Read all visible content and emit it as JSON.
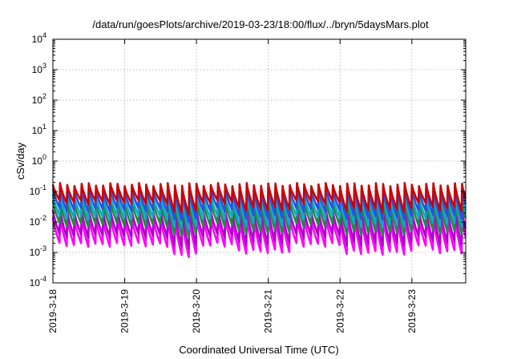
{
  "chart_data": {
    "type": "line",
    "title": "/data/run/goesPlots/archive/2019-03-23/18:00/flux/../bryn/5daysMars.plot",
    "xlabel": "Coordinated Universal Time (UTC)",
    "ylabel": "cSv/day",
    "yscale": "log",
    "ylim": [
      0.0001,
      10000
    ],
    "xlim": [
      "2019-03-18 00:00",
      "2019-03-23 18:00"
    ],
    "grid": true,
    "legend": "none",
    "y_ticks": [
      {
        "base": "10",
        "exp": "-4"
      },
      {
        "base": "10",
        "exp": "-3"
      },
      {
        "base": "10",
        "exp": "-2"
      },
      {
        "base": "10",
        "exp": "-1"
      },
      {
        "base": "10",
        "exp": "0"
      },
      {
        "base": "10",
        "exp": "1"
      },
      {
        "base": "10",
        "exp": "2"
      },
      {
        "base": "10",
        "exp": "3"
      },
      {
        "base": "10",
        "exp": "4"
      }
    ],
    "x_ticks": [
      "2019-3-18",
      "2019-3-19",
      "2019-3-20",
      "2019-3-21",
      "2019-3-22",
      "2019-3-23"
    ],
    "sawtooth": {
      "period_hours": 2.4,
      "note_free": true
    },
    "series": [
      {
        "color": "#cc0000",
        "peak": 0.17,
        "trough": 0.045
      },
      {
        "color": "#2c4fe0",
        "peak": 0.13,
        "trough": 0.025
      },
      {
        "color": "#11a9c9",
        "peak": 0.08,
        "trough": 0.014
      },
      {
        "color": "#1a8f3c",
        "peak": 0.05,
        "trough": 0.008
      },
      {
        "color": "#b000c8",
        "peak": 0.025,
        "trough": 0.0035
      },
      {
        "color": "#ff00ff",
        "peak": 0.014,
        "trough": 0.0018
      }
    ],
    "quiet_periods": [
      {
        "from_hours": 38,
        "to_hours": 48,
        "trough_scale": 0.45
      },
      {
        "from_hours": 60,
        "to_hours": 78,
        "trough_scale": 0.6
      },
      {
        "from_hours": 96,
        "to_hours": 120,
        "trough_scale": 0.55
      },
      {
        "from_hours": 126,
        "to_hours": 138,
        "trough_scale": 0.6
      }
    ]
  }
}
